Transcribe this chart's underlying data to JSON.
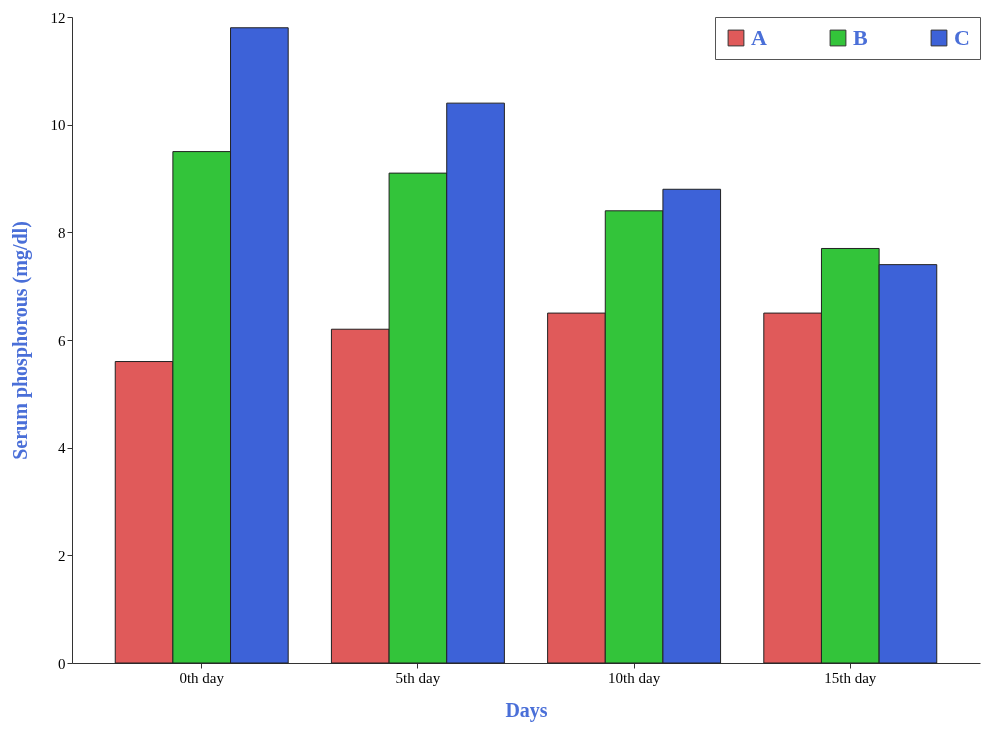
{
  "chart_data": {
    "type": "bar",
    "xlabel": "Days",
    "ylabel": "Serum phosphorous (mg/dl)",
    "categories": [
      "0th day",
      "5th day",
      "10th day",
      "15th day"
    ],
    "series": [
      {
        "name": "A",
        "color": "#e05a5a",
        "values": [
          5.6,
          6.2,
          6.5,
          6.5
        ]
      },
      {
        "name": "B",
        "color": "#33c43a",
        "values": [
          9.5,
          9.1,
          8.4,
          7.7
        ]
      },
      {
        "name": "C",
        "color": "#3d62d8",
        "values": [
          11.8,
          10.4,
          8.8,
          7.4
        ]
      }
    ],
    "ylim": [
      0,
      12
    ],
    "yticks": [
      0,
      2,
      4,
      6,
      8,
      10,
      12
    ],
    "grid": false,
    "legend": "top right"
  }
}
